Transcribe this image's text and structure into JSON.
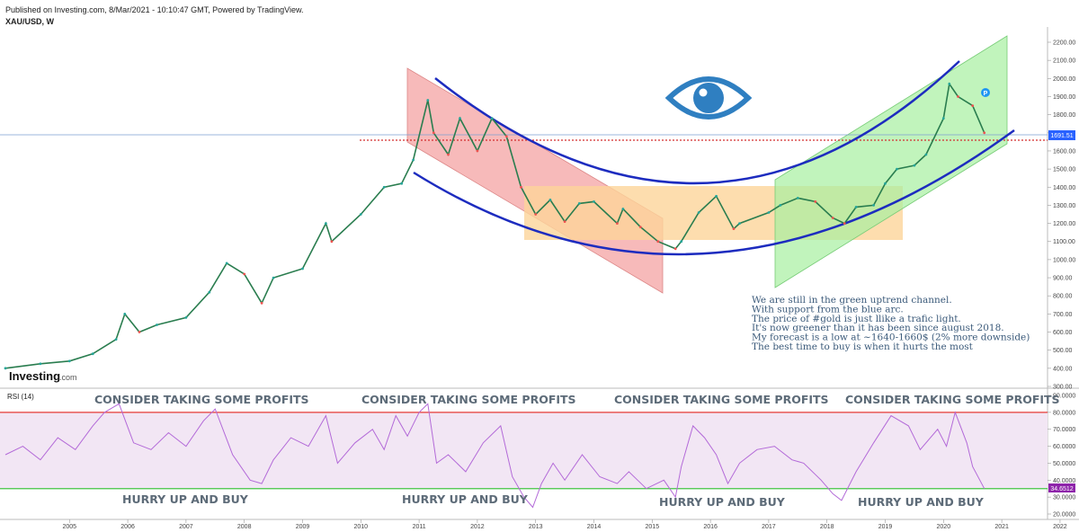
{
  "header": {
    "published": "Published on Investing.com, 8/Mar/2021 - 10:10:47 GMT, Powered by TradingView.",
    "symbol": "XAU/USD, W"
  },
  "logo": {
    "main": "Investing",
    "suffix": ".com"
  },
  "colors": {
    "price_up": "#26a69a",
    "price_down": "#ef5350",
    "arc": "#1d2cbf",
    "red_channel": "#f4a3a3",
    "orange_box": "#fcd59a",
    "green_channel": "#a6f0a0",
    "rsi_line": "#b36ad8",
    "rsi_band": "#f2e6f4",
    "rsi_upper": "#e53935",
    "rsi_lower": "#43c543",
    "last_price_bg": "#2962ff",
    "rsi_last_bg": "#8e24aa",
    "eye": "#2f7fc1"
  },
  "icons": {
    "eye": "eye-icon",
    "marker": "p-marker-icon"
  },
  "chart_data": [
    {
      "type": "line",
      "name": "XAU/USD weekly",
      "title": "XAU/USD, W",
      "ylim": [
        300,
        2200
      ],
      "x_range": [
        2004.4,
        2022.1
      ],
      "x_ticks": [
        "2005",
        "2006",
        "2007",
        "2008",
        "2009",
        "2010",
        "2011",
        "2012",
        "2013",
        "2014",
        "2015",
        "2016",
        "2017",
        "2018",
        "2019",
        "2020",
        "2021",
        "2022"
      ],
      "y_ticks": [
        "300.00",
        "400.00",
        "500.00",
        "600.00",
        "700.00",
        "800.00",
        "900.00",
        "1000.00",
        "1100.00",
        "1200.00",
        "1300.00",
        "1400.00",
        "1500.00",
        "1600.00",
        "1700.00",
        "1800.00",
        "1900.00",
        "2000.00",
        "2100.00",
        "2200.00"
      ],
      "last_price": 1691.51,
      "last_price_label": "1691.51",
      "x": [
        2004.4,
        2005.0,
        2005.5,
        2005.9,
        2006.3,
        2006.45,
        2006.7,
        2007.0,
        2007.5,
        2007.9,
        2008.2,
        2008.5,
        2008.8,
        2009.0,
        2009.5,
        2009.9,
        2010.0,
        2010.5,
        2010.9,
        2011.2,
        2011.4,
        2011.65,
        2011.75,
        2012.0,
        2012.2,
        2012.5,
        2012.75,
        2013.0,
        2013.25,
        2013.5,
        2013.75,
        2014.0,
        2014.25,
        2014.5,
        2014.9,
        2015.0,
        2015.3,
        2015.6,
        2015.9,
        2016.0,
        2016.3,
        2016.6,
        2016.9,
        2017.0,
        2017.5,
        2017.7,
        2018.0,
        2018.3,
        2018.6,
        2018.8,
        2019.0,
        2019.3,
        2019.5,
        2019.7,
        2020.0,
        2020.2,
        2020.5,
        2020.6,
        2020.75,
        2021.0,
        2021.2
      ],
      "values": [
        400,
        425,
        440,
        480,
        560,
        700,
        600,
        640,
        680,
        820,
        980,
        920,
        760,
        900,
        950,
        1200,
        1100,
        1250,
        1400,
        1420,
        1550,
        1880,
        1700,
        1580,
        1780,
        1600,
        1780,
        1680,
        1400,
        1250,
        1330,
        1210,
        1310,
        1320,
        1200,
        1280,
        1180,
        1100,
        1060,
        1100,
        1260,
        1350,
        1170,
        1200,
        1260,
        1300,
        1340,
        1320,
        1230,
        1200,
        1290,
        1300,
        1420,
        1500,
        1520,
        1580,
        1780,
        1970,
        1900,
        1850,
        1700
      ]
    },
    {
      "type": "line",
      "name": "RSI (14)",
      "title": "RSI (14)",
      "ylim": [
        20,
        90
      ],
      "y_ticks": [
        "20.0000",
        "30.0000",
        "40.0000",
        "50.0000",
        "60.0000",
        "70.0000",
        "80.0000",
        "90.0000"
      ],
      "upper_band": 80,
      "lower_band": 35,
      "last_value": 34.6512,
      "last_label": "34.6512",
      "x": [
        2004.4,
        2004.7,
        2005.0,
        2005.3,
        2005.6,
        2005.9,
        2006.1,
        2006.35,
        2006.6,
        2006.9,
        2007.2,
        2007.5,
        2007.8,
        2008.0,
        2008.3,
        2008.6,
        2008.8,
        2009.0,
        2009.3,
        2009.6,
        2009.9,
        2010.1,
        2010.4,
        2010.7,
        2010.9,
        2011.1,
        2011.3,
        2011.5,
        2011.65,
        2011.8,
        2012.0,
        2012.3,
        2012.6,
        2012.9,
        2013.1,
        2013.3,
        2013.45,
        2013.6,
        2013.8,
        2014.0,
        2014.3,
        2014.6,
        2014.9,
        2015.1,
        2015.4,
        2015.7,
        2015.9,
        2016.0,
        2016.2,
        2016.4,
        2016.6,
        2016.8,
        2017.0,
        2017.3,
        2017.6,
        2017.9,
        2018.1,
        2018.4,
        2018.6,
        2018.75,
        2019.0,
        2019.3,
        2019.6,
        2019.9,
        2020.1,
        2020.4,
        2020.55,
        2020.7,
        2020.9,
        2021.0,
        2021.2
      ],
      "values": [
        55,
        60,
        52,
        65,
        58,
        72,
        80,
        85,
        62,
        58,
        68,
        60,
        75,
        82,
        55,
        40,
        38,
        52,
        65,
        60,
        78,
        50,
        62,
        70,
        58,
        78,
        66,
        80,
        85,
        50,
        55,
        45,
        62,
        72,
        42,
        30,
        24,
        38,
        50,
        40,
        55,
        42,
        38,
        45,
        35,
        40,
        30,
        48,
        72,
        65,
        55,
        38,
        50,
        58,
        60,
        52,
        50,
        40,
        32,
        28,
        45,
        62,
        78,
        72,
        58,
        70,
        60,
        80,
        62,
        48,
        35
      ]
    }
  ],
  "annotations": {
    "consider": [
      "CONSIDER TAKING SOME PROFITS",
      "CONSIDER TAKING SOME PROFITS",
      "CONSIDER TAKING SOME PROFITS",
      "CONSIDER TAKING SOME PROFITS"
    ],
    "hurry": [
      "HURRY UP AND BUY",
      "HURRY UP AND BUY",
      "HURRY UP AND BUY",
      "HURRY UP AND BUY"
    ],
    "note_lines": [
      "We are still in the green uptrend channel.",
      "With support from the blue arc.",
      "The price of #gold is just llike a trafic light.",
      "It's now greener than it has been since august 2018.",
      "My forecast is a low at ~1640-1660$ (2% more downside)",
      "The best time to buy is when it hurts the most"
    ]
  }
}
